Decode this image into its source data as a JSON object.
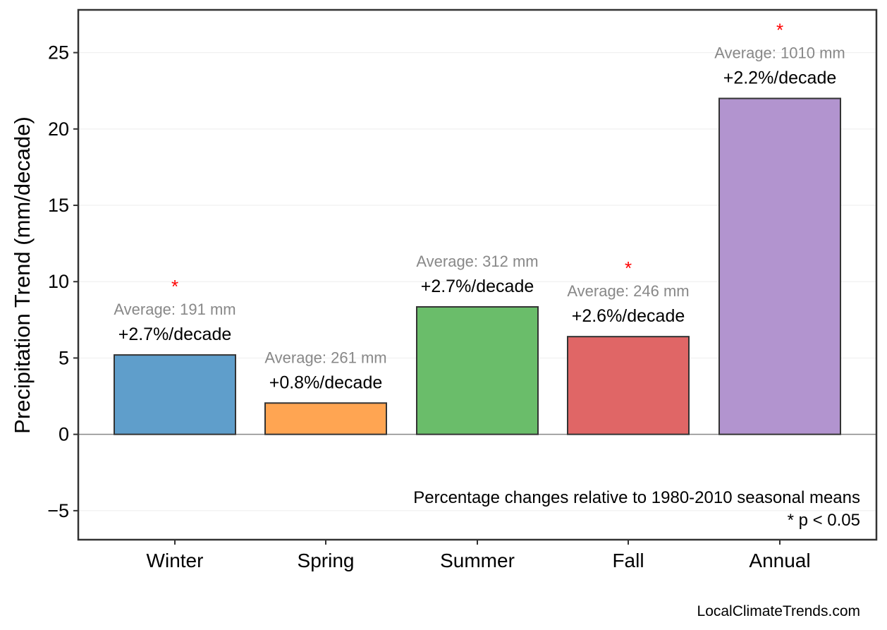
{
  "chart_data": {
    "type": "bar",
    "categories": [
      "Winter",
      "Spring",
      "Summer",
      "Fall",
      "Annual"
    ],
    "values": [
      5.2,
      2.05,
      8.35,
      6.4,
      22.0
    ],
    "colors": [
      "#5f9ecb",
      "#ffa552",
      "#6abd6a",
      "#e06666",
      "#b294cf"
    ],
    "pct_labels": [
      "+2.7%/decade",
      "+0.8%/decade",
      "+2.7%/decade",
      "+2.6%/decade",
      "+2.2%/decade"
    ],
    "avg_labels": [
      "Average: 191 mm",
      "Average: 261 mm",
      "Average: 312 mm",
      "Average: 246 mm",
      "Average: 1010 mm"
    ],
    "significant": [
      true,
      false,
      false,
      true,
      true
    ],
    "significance_marker": "*",
    "ylabel": "Precipitation Trend (mm/decade)",
    "xlabel": "",
    "ylim": [
      -6.9,
      27.8
    ],
    "yticks": [
      -5,
      0,
      5,
      10,
      15,
      20,
      25
    ],
    "ytick_labels": [
      "−5",
      "0",
      "5",
      "10",
      "15",
      "20",
      "25"
    ],
    "grid": true,
    "notes": [
      "Percentage changes relative to 1980-2010 seasonal means",
      "* p < 0.05"
    ],
    "credit": "LocalClimateTrends.com"
  }
}
